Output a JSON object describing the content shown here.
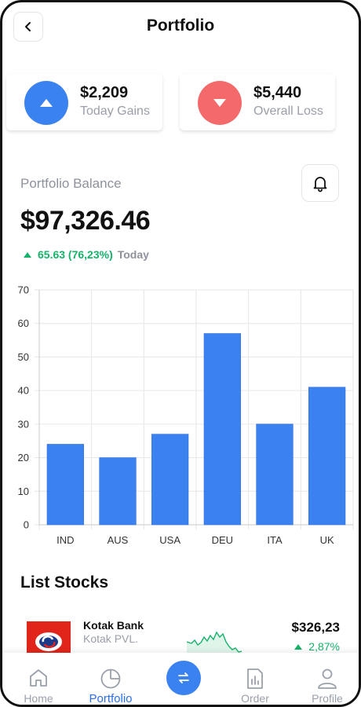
{
  "header": {
    "title": "Portfolio"
  },
  "summary": {
    "gains": {
      "amount": "$2,209",
      "label": "Today Gains",
      "direction": "up",
      "color": "#3a82f0"
    },
    "loss": {
      "amount": "$5,440",
      "label": "Overall Loss",
      "direction": "down",
      "color": "#f46a6a"
    }
  },
  "balance": {
    "label": "Portfolio Balance",
    "value": "$97,326.46",
    "change": "65.63 (76,23%)",
    "period": "Today",
    "change_color": "#17b26a"
  },
  "chart_data": {
    "type": "bar",
    "categories": [
      "IND",
      "AUS",
      "USA",
      "DEU",
      "ITA",
      "UK"
    ],
    "values": [
      24,
      20,
      27,
      57,
      30,
      41
    ],
    "ylim": [
      0,
      70
    ],
    "yticks": [
      0,
      10,
      20,
      30,
      40,
      50,
      60,
      70
    ],
    "grid": true,
    "bar_color": "#3b82f0"
  },
  "list": {
    "title": "List Stocks",
    "stocks": [
      {
        "name": "Kotak Bank",
        "subtitle": "Kotak PVL.",
        "price": "$326,23",
        "change": "2,87%",
        "trend": "up"
      }
    ]
  },
  "nav": {
    "home": "Home",
    "portfolio": "Portfolio",
    "order": "Order",
    "profile": "Profile",
    "active": "portfolio",
    "active_color": "#2f6fe4"
  }
}
